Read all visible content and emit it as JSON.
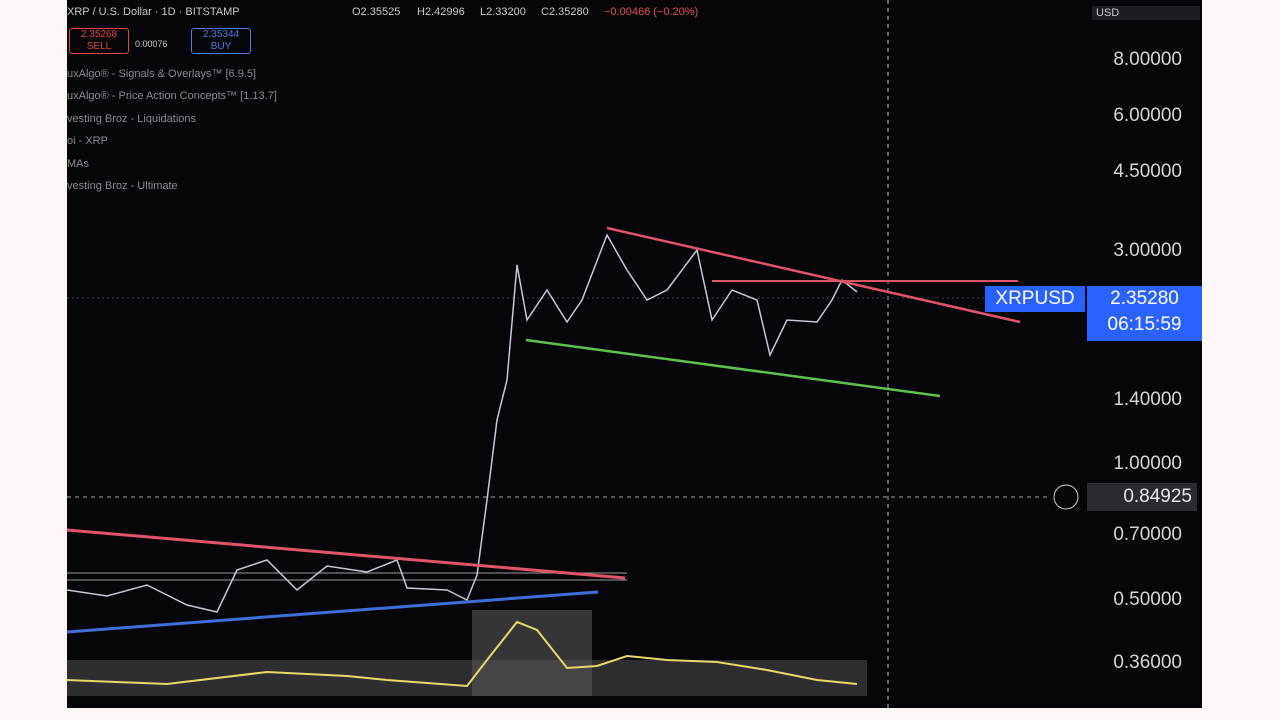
{
  "header": {
    "symbol": "XRP / U.S. Dollar · 1D · BITSTAMP",
    "open": "O2.35525",
    "high": "H2.42996",
    "low": "L2.33200",
    "close": "C2.35280",
    "change": "−0.00466 (−0.20%)"
  },
  "trade": {
    "sell_price": "2.35268",
    "sell": "SELL",
    "spread": "0.00076",
    "buy_price": "2.35344",
    "buy": "BUY"
  },
  "indicators": [
    "uxAlgo® - Signals & Overlays™ [6.9.5]",
    "uxAlgo® - Price Action Concepts™ [1.13.7]",
    "vesting Broz - Liquidations",
    "oi - XRP",
    "MAs",
    "vesting Broz - Ultimate"
  ],
  "currency": "USD",
  "price_axis": [
    "8.00000",
    "6.00000",
    "4.50000",
    "3.00000",
    "1.40000",
    "1.00000",
    "0.70000",
    "0.50000",
    "0.36000"
  ],
  "last_price": {
    "symbol": "XRPUSD",
    "price": "2.35280",
    "countdown": "06:15:59"
  },
  "crosshair_price": "0.84925"
}
